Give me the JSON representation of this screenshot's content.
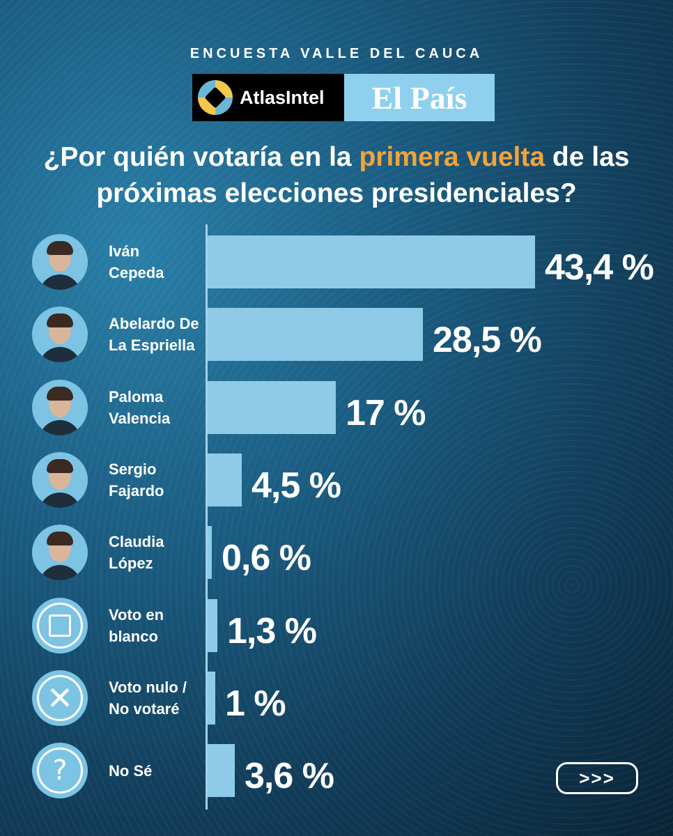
{
  "header": {
    "survey_title": "ENCUESTA VALLE DEL CAUCA",
    "logo_atlas": "AtlasIntel",
    "logo_elpais": "El País"
  },
  "question": {
    "part1": "¿Por quién votaría en la ",
    "highlight": "primera vuelta",
    "part2": " de las próximas elecciones presidenciales?",
    "highlight_color": "#f2a33a"
  },
  "chart_data": {
    "type": "bar",
    "orientation": "horizontal",
    "categories": [
      "Iván Cepeda",
      "Abelardo De La Espriella",
      "Paloma Valencia",
      "Sergio Fajardo",
      "Claudia López",
      "Voto en blanco",
      "Voto nulo / No votaré",
      "No Sé"
    ],
    "values": [
      43.4,
      28.5,
      17,
      4.5,
      0.6,
      1.3,
      1,
      3.6
    ],
    "value_labels": [
      "43,4 %",
      "28,5 %",
      "17 %",
      "4,5 %",
      "0,6 %",
      "1,3 %",
      "1 %",
      "3,6 %"
    ],
    "name_lines": [
      [
        "Iván",
        "Cepeda"
      ],
      [
        "Abelardo De",
        "La Espriella"
      ],
      [
        "Paloma",
        "Valencia"
      ],
      [
        "Sergio",
        "Fajardo"
      ],
      [
        "Claudia",
        "López"
      ],
      [
        "Voto en",
        "blanco"
      ],
      [
        "Voto nulo /",
        "No votaré"
      ],
      [
        "No Sé"
      ]
    ],
    "icons": [
      "candidate-photo",
      "candidate-photo",
      "candidate-photo",
      "candidate-photo",
      "candidate-photo",
      "blank-ballot-icon",
      "null-vote-icon",
      "question-icon"
    ],
    "bar_color": "#8fcbe8"
  },
  "nav": {
    "next_label": ">>>"
  }
}
